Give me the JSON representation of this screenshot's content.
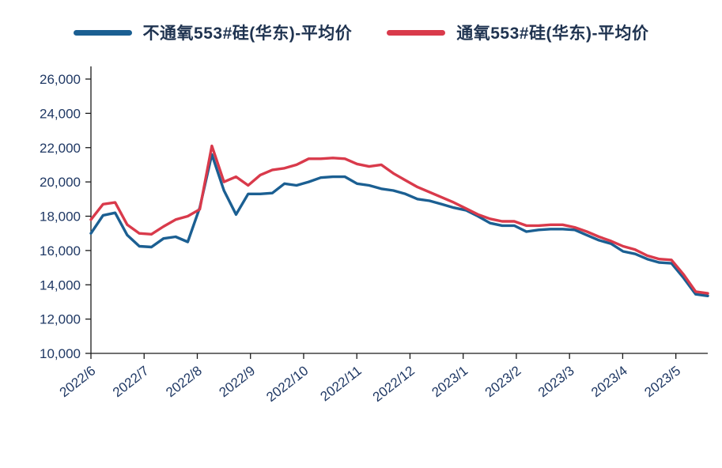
{
  "axis": {
    "text_color": "#1f3864",
    "line_color": "#1a1a1a"
  },
  "chart_data": {
    "type": "line",
    "title": "",
    "legend_position": "top",
    "grid": false,
    "background": "#ffffff",
    "x_tick_labels": [
      "2022/6",
      "2022/7",
      "2022/8",
      "2022/9",
      "2022/10",
      "2022/11",
      "2022/12",
      "2023/1",
      "2023/2",
      "2023/3",
      "2023/4",
      "2023/5"
    ],
    "x_axis_months": [
      0,
      1,
      2,
      3,
      4,
      5,
      6,
      7,
      8,
      9,
      10,
      11
    ],
    "x_max_month": 11.6,
    "y_min": 10000,
    "y_max": 26000,
    "y_tick_step": 2000,
    "y_tick_labels": [
      "10,000",
      "12,000",
      "14,000",
      "16,000",
      "18,000",
      "20,000",
      "22,000",
      "24,000",
      "26,000"
    ],
    "series": [
      {
        "name": "不通氧553#硅(华东)-平均价",
        "color": "#1b5f92",
        "values": [
          17000,
          18050,
          18200,
          16900,
          16250,
          16200,
          16700,
          16800,
          16500,
          18500,
          21600,
          19500,
          18100,
          19300,
          19300,
          19350,
          19900,
          19800,
          20000,
          20250,
          20300,
          20300,
          19900,
          19800,
          19600,
          19500,
          19300,
          19000,
          18900,
          18700,
          18500,
          18350,
          18000,
          17600,
          17450,
          17450,
          17100,
          17200,
          17250,
          17250,
          17200,
          16900,
          16600,
          16400,
          15950,
          15800,
          15500,
          15300,
          15250,
          14400,
          13450,
          13350
        ]
      },
      {
        "name": "通氧553#硅(华东)-平均价",
        "color": "#d93a4b",
        "values": [
          17800,
          18700,
          18800,
          17500,
          17000,
          16950,
          17400,
          17800,
          18000,
          18400,
          22100,
          20000,
          20300,
          19800,
          20400,
          20700,
          20800,
          21000,
          21350,
          21350,
          21400,
          21350,
          21050,
          20900,
          21000,
          20500,
          20100,
          19700,
          19400,
          19100,
          18800,
          18450,
          18100,
          17850,
          17700,
          17700,
          17450,
          17450,
          17500,
          17500,
          17350,
          17100,
          16800,
          16550,
          16250,
          16050,
          15700,
          15500,
          15450,
          14600,
          13600,
          13500
        ]
      }
    ]
  }
}
